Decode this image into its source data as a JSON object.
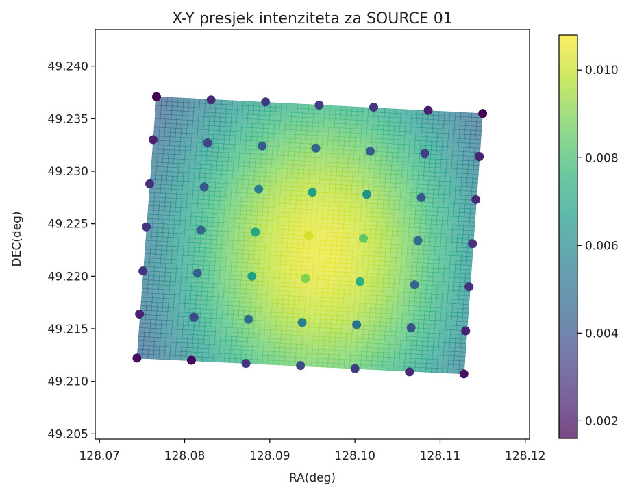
{
  "chart_data": {
    "type": "scatter",
    "title": "X-Y presjek intenziteta za SOURCE 01",
    "xlabel": "RA(deg)",
    "ylabel": "DEC(deg)",
    "xlim": [
      128.0695,
      128.1205
    ],
    "ylim": [
      49.2045,
      49.2435
    ],
    "x_ticks": [
      128.07,
      128.08,
      128.09,
      128.1,
      128.11,
      128.12
    ],
    "x_tick_labels": [
      "128.07",
      "128.08",
      "128.09",
      "128.10",
      "128.11",
      "128.12"
    ],
    "y_ticks": [
      49.205,
      49.21,
      49.215,
      49.22,
      49.225,
      49.23,
      49.235,
      49.24
    ],
    "y_tick_labels": [
      "49.205",
      "49.210",
      "49.215",
      "49.220",
      "49.225",
      "49.230",
      "49.235",
      "49.240"
    ],
    "grid": false,
    "colormap": "viridis",
    "colorbar": {
      "min": 0.0016,
      "max": 0.0108,
      "ticks": [
        0.002,
        0.004,
        0.006,
        0.008,
        0.01
      ],
      "tick_labels": [
        "0.002",
        "0.004",
        "0.006",
        "0.008",
        "0.010"
      ]
    },
    "surface": {
      "corners": [
        [
          128.0767,
          49.2371
        ],
        [
          128.115,
          49.2355
        ],
        [
          128.1128,
          49.2107
        ],
        [
          128.0744,
          49.2122
        ]
      ],
      "peak": [
        128.096,
        49.2222
      ],
      "peak_value": 0.0105,
      "sigma_deg": 0.0155,
      "base_value": 0.0016,
      "alpha": 0.7
    },
    "points": [
      [
        128.0767,
        49.2371,
        0.0016
      ],
      [
        128.0831,
        49.2368,
        0.0026
      ],
      [
        128.0895,
        49.2366,
        0.0031
      ],
      [
        128.0958,
        49.2363,
        0.0033
      ],
      [
        128.1022,
        49.2361,
        0.0031
      ],
      [
        128.1086,
        49.2358,
        0.0023
      ],
      [
        128.115,
        49.2355,
        0.0016
      ],
      [
        128.0763,
        49.233,
        0.0024
      ],
      [
        128.0827,
        49.2327,
        0.0035
      ],
      [
        128.0891,
        49.2324,
        0.0042
      ],
      [
        128.0954,
        49.2322,
        0.0045
      ],
      [
        128.1018,
        49.2319,
        0.0042
      ],
      [
        128.1082,
        49.2317,
        0.0033
      ],
      [
        128.1146,
        49.2314,
        0.0024
      ],
      [
        128.0759,
        49.2288,
        0.0028
      ],
      [
        128.0823,
        49.2285,
        0.0041
      ],
      [
        128.0887,
        49.2283,
        0.0055
      ],
      [
        128.095,
        49.228,
        0.0068
      ],
      [
        128.1014,
        49.2278,
        0.0063
      ],
      [
        128.1078,
        49.2275,
        0.0042
      ],
      [
        128.1142,
        49.2273,
        0.0027
      ],
      [
        128.0755,
        49.2247,
        0.003
      ],
      [
        128.0819,
        49.2244,
        0.0046
      ],
      [
        128.0883,
        49.2242,
        0.007
      ],
      [
        128.0946,
        49.2239,
        0.0102
      ],
      [
        128.101,
        49.2236,
        0.0085
      ],
      [
        128.1074,
        49.2234,
        0.0048
      ],
      [
        128.1138,
        49.2231,
        0.003
      ],
      [
        128.0751,
        49.2205,
        0.0029
      ],
      [
        128.0815,
        49.2203,
        0.0044
      ],
      [
        128.0879,
        49.22,
        0.0068
      ],
      [
        128.0942,
        49.2198,
        0.009
      ],
      [
        128.1006,
        49.2195,
        0.0074
      ],
      [
        128.107,
        49.2192,
        0.0045
      ],
      [
        128.1134,
        49.219,
        0.0029
      ],
      [
        128.0747,
        49.2164,
        0.0025
      ],
      [
        128.0811,
        49.2161,
        0.0036
      ],
      [
        128.0875,
        49.2159,
        0.0048
      ],
      [
        128.0938,
        49.2156,
        0.0055
      ],
      [
        128.1002,
        49.2154,
        0.005
      ],
      [
        128.1066,
        49.2151,
        0.004
      ],
      [
        128.113,
        49.2148,
        0.0025
      ],
      [
        128.0744,
        49.2122,
        0.0019
      ],
      [
        128.0808,
        49.212,
        0.0018
      ],
      [
        128.0872,
        49.2117,
        0.003
      ],
      [
        128.0936,
        49.2115,
        0.0036
      ],
      [
        128.1,
        49.2112,
        0.0033
      ],
      [
        128.1064,
        49.2109,
        0.0027
      ],
      [
        128.1128,
        49.2107,
        0.002
      ]
    ]
  }
}
